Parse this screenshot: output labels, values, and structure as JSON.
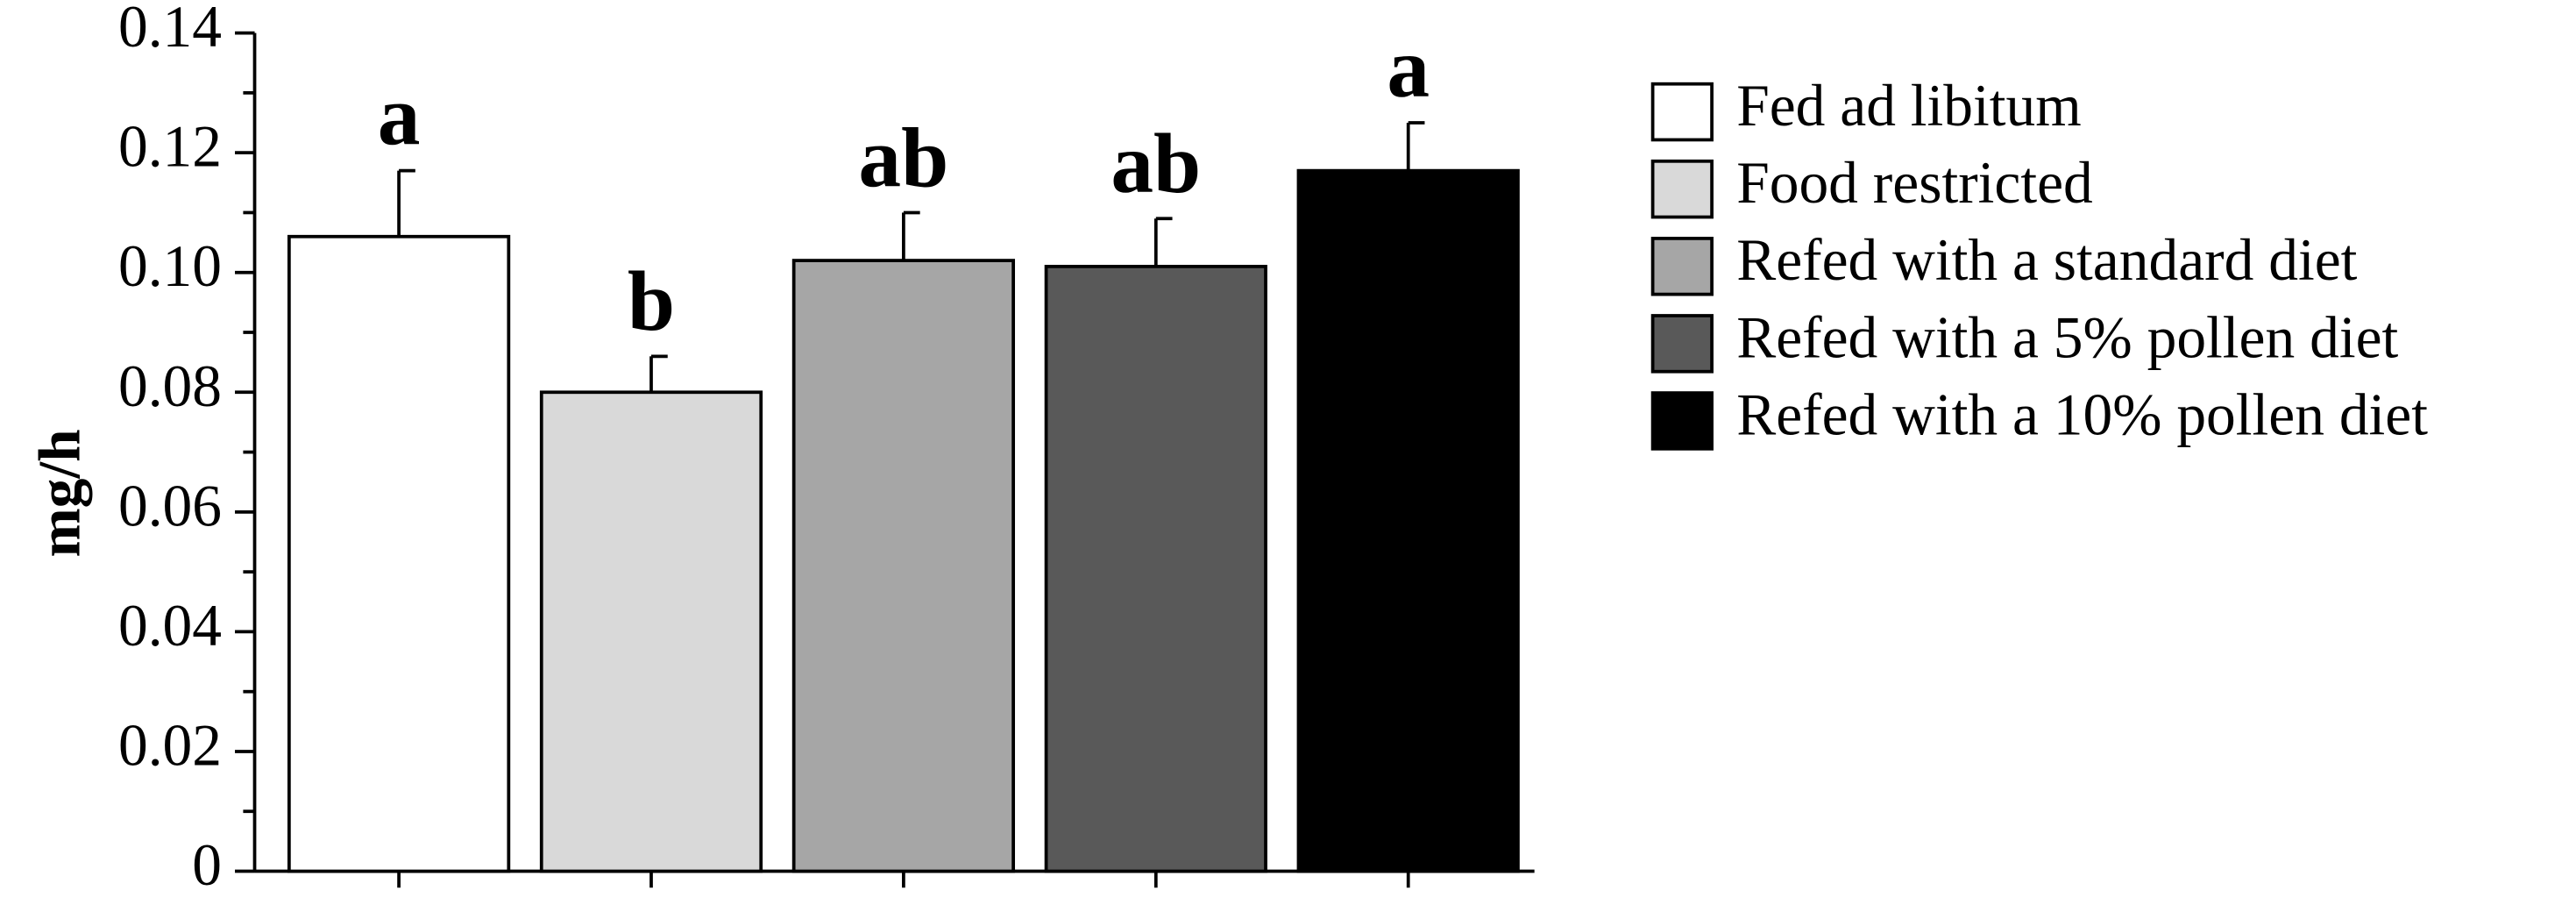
{
  "chart_data": {
    "type": "bar",
    "y_label": "mg/h",
    "categories": [
      "Fed ad libitum",
      "Food restricted",
      "Refed with a standard diet",
      "Refed with a 5% pollen diet",
      "Refed with a 10% pollen diet"
    ],
    "values": [
      0.106,
      0.08,
      0.102,
      0.101,
      0.117
    ],
    "errors": [
      0.011,
      0.006,
      0.008,
      0.008,
      0.008
    ],
    "annotations": [
      "a",
      "b",
      "ab",
      "ab",
      "a"
    ],
    "colors": [
      "#ffffff",
      "#d9d9d9",
      "#a6a6a6",
      "#595959",
      "#000000"
    ],
    "ylim": [
      0,
      0.14
    ],
    "yticks": [
      0,
      0.02,
      0.04,
      0.06,
      0.08,
      {
        "value": 0.1,
        "label": "0.10"
      },
      0.12,
      0.14
    ],
    "grid": false,
    "legend": "right"
  }
}
